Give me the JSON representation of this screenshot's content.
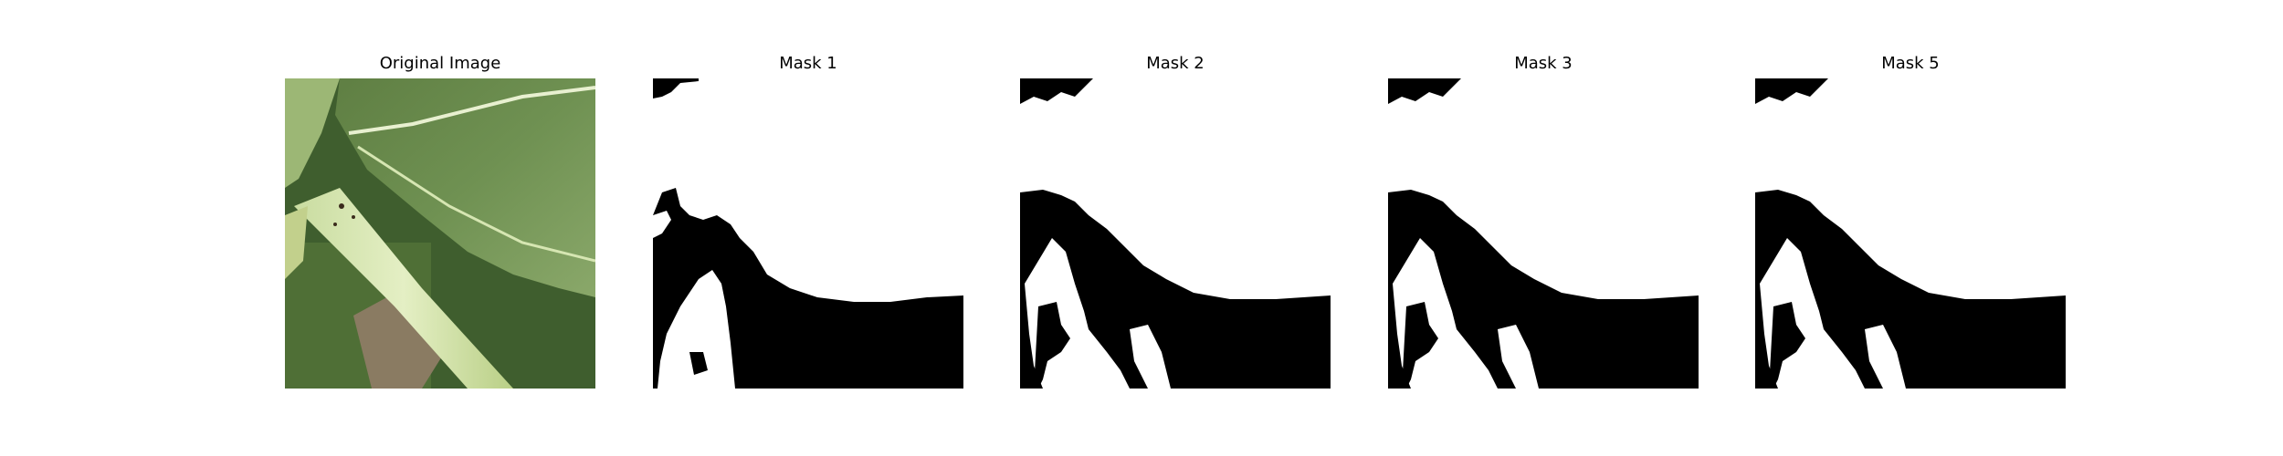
{
  "figure": {
    "panels": [
      {
        "title": "Original Image",
        "kind": "photo"
      },
      {
        "title": "Mask 1",
        "kind": "mask"
      },
      {
        "title": "Mask 2",
        "kind": "mask"
      },
      {
        "title": "Mask 3",
        "kind": "mask"
      },
      {
        "title": "Mask 5",
        "kind": "mask"
      }
    ]
  }
}
